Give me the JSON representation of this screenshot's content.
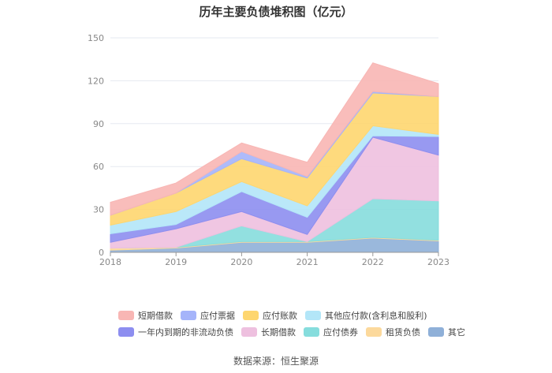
{
  "chart_data": {
    "type": "area",
    "stacked": true,
    "title": "历年主要负债堆积图（亿元）",
    "x": [
      "2018",
      "2019",
      "2020",
      "2021",
      "2022",
      "2023"
    ],
    "y_ticks": [
      "0",
      "30",
      "60",
      "90",
      "120",
      "150"
    ],
    "ylim": [
      0,
      150
    ],
    "grid": true,
    "legend_position": "bottom",
    "series": [
      {
        "name": "其它",
        "color": "#8fb0d8",
        "values": [
          1.5,
          3,
          7,
          7,
          10,
          8
        ]
      },
      {
        "name": "租赁负债",
        "color": "#fcd99c",
        "values": [
          1.5,
          0.5,
          0.5,
          0.5,
          0.5,
          0.5
        ]
      },
      {
        "name": "应付债券",
        "color": "#86dddd",
        "values": [
          0,
          0,
          11,
          0,
          27,
          27.5
        ]
      },
      {
        "name": "长期借款",
        "color": "#eec0df",
        "values": [
          4,
          13,
          10,
          5,
          43,
          32
        ]
      },
      {
        "name": "一年内到期的非流动负债",
        "color": "#8d8ef0",
        "values": [
          6,
          3,
          14,
          12,
          1,
          13
        ]
      },
      {
        "name": "其他应付款(含利息和股利)",
        "color": "#b3e6f8",
        "values": [
          6,
          9,
          7,
          8,
          7,
          1.5
        ]
      },
      {
        "name": "应付账款",
        "color": "#fed66f",
        "values": [
          7,
          13,
          16,
          19.5,
          23,
          26.5
        ]
      },
      {
        "name": "应付票据",
        "color": "#a5b4fa",
        "values": [
          0,
          0,
          5,
          1,
          1,
          0
        ]
      },
      {
        "name": "短期借款",
        "color": "#f8b6b4",
        "values": [
          9,
          7,
          6,
          10,
          20,
          9
        ]
      }
    ],
    "legend_rows": [
      [
        "短期借款",
        "应付票据",
        "应付账款",
        "其他应付款(含利息和股利)"
      ],
      [
        "一年内到期的非流动负债",
        "长期借款",
        "应付债券",
        "租赁负债",
        "其它"
      ]
    ]
  },
  "source": "数据来源：恒生聚源"
}
